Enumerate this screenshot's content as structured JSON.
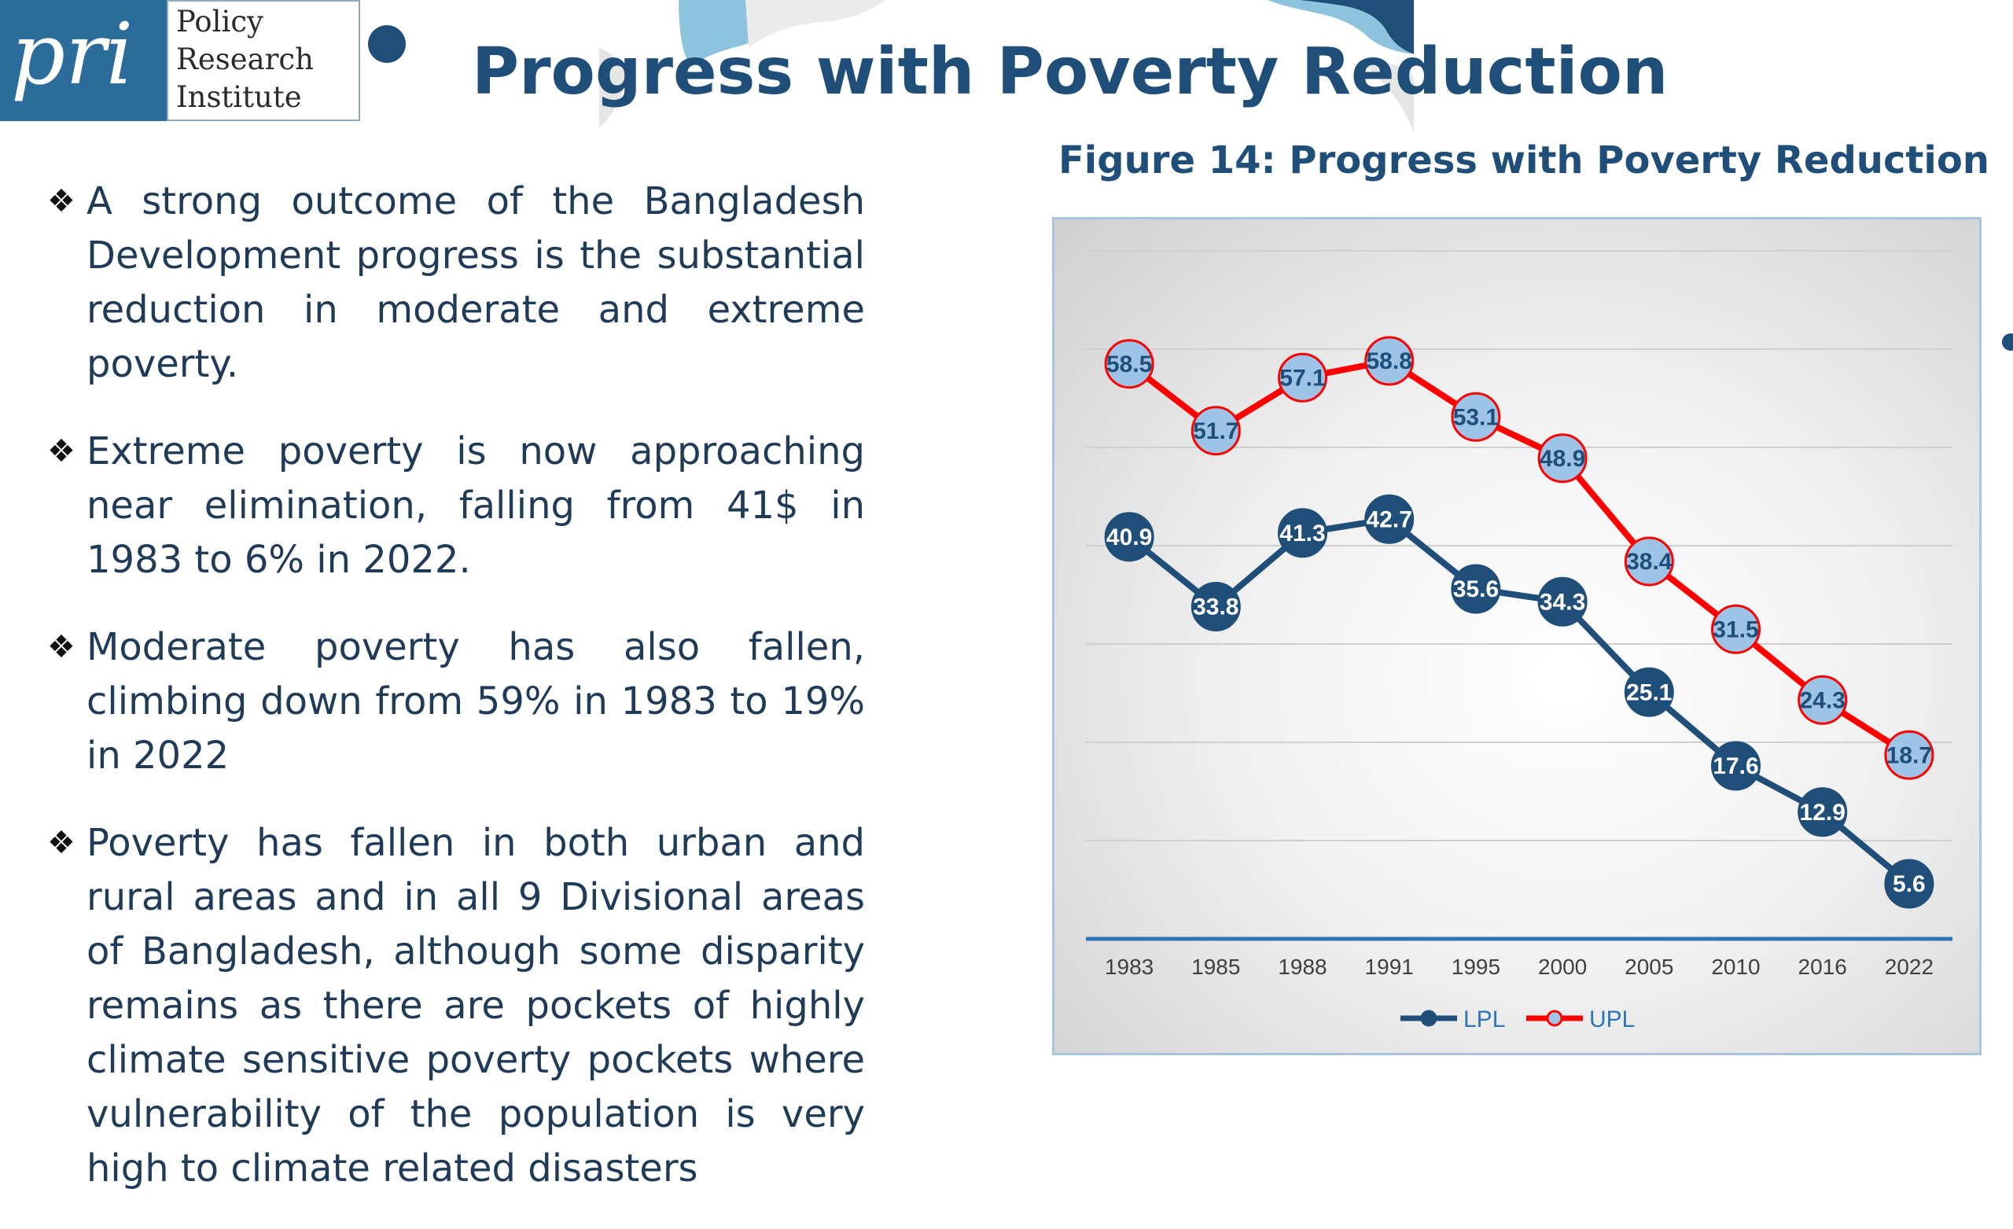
{
  "logo": {
    "mark": "pri",
    "lines": [
      "Policy",
      "Research",
      "Institute"
    ]
  },
  "slide_title": "Progress with Poverty Reduction",
  "bullet_icon": "diamond-bullet-icon",
  "bullets": [
    "A strong outcome of the Bangladesh Development progress is the substantial reduction in moderate and extreme poverty.",
    "Extreme poverty is now approaching near elimination, falling from 41$ in 1983 to 6% in 2022.",
    "Moderate poverty has also fallen, climbing down from 59% in 1983 to 19% in 2022",
    "Poverty has fallen in both urban and rural areas and in all 9 Divisional areas of Bangladesh, although some disparity remains as there are pockets of highly climate sensitive poverty pockets where vulnerability of the population is very high to climate related disasters"
  ],
  "colors": {
    "primary": "#1f4e79",
    "lpl": "#1f4e79",
    "upl": "#ff0000",
    "upl_marker": "#9dc3e6",
    "accent": "#2e75b6"
  },
  "chart_data": {
    "type": "line",
    "title": "Figure 14: Progress with Poverty Reduction",
    "categories": [
      "1983",
      "1985",
      "1988",
      "1991",
      "1995",
      "2000",
      "2005",
      "2010",
      "2016",
      "2022"
    ],
    "series": [
      {
        "name": "LPL",
        "values": [
          40.9,
          33.8,
          41.3,
          42.7,
          35.6,
          34.3,
          25.1,
          17.6,
          12.9,
          5.6
        ]
      },
      {
        "name": "UPL",
        "values": [
          58.5,
          51.7,
          57.1,
          58.8,
          53.1,
          48.9,
          38.4,
          31.5,
          24.3,
          18.7
        ]
      }
    ],
    "ylim": [
      0,
      70
    ],
    "grid": true,
    "legend": "bottom",
    "data_labels": true
  }
}
